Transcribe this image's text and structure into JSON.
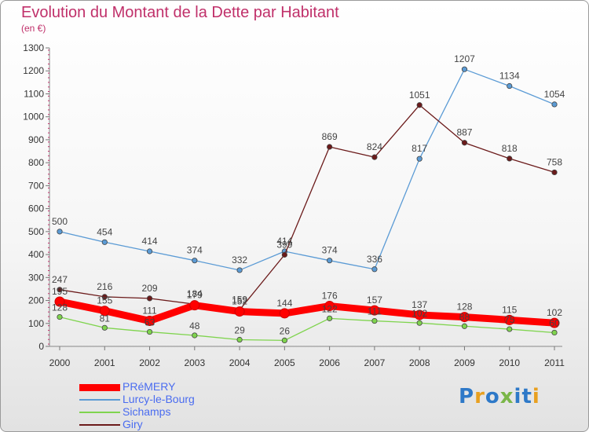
{
  "chart_data": {
    "type": "line",
    "title": "Evolution du Montant de la Dette par Habitant",
    "subtitle": "(en €)",
    "xlabel": "",
    "ylabel": "",
    "categories": [
      "2000",
      "2001",
      "2002",
      "2003",
      "2004",
      "2005",
      "2006",
      "2007",
      "2008",
      "2009",
      "2010",
      "2011"
    ],
    "ylim": [
      0,
      1300
    ],
    "yticks": [
      0,
      100,
      200,
      300,
      400,
      500,
      600,
      700,
      800,
      900,
      1000,
      1100,
      1200,
      1300
    ],
    "grid": false,
    "legend_position": "bottom-left",
    "series": [
      {
        "name": "Lurcy-le-Bourg",
        "color": "#5b9bd5",
        "values": [
          500,
          454,
          414,
          374,
          332,
          414,
          374,
          336,
          817,
          1207,
          1134,
          1054
        ]
      },
      {
        "name": "Giry",
        "color": "#6b1a1a",
        "values": [
          247,
          216,
          209,
          184,
          159,
          399,
          869,
          824,
          1051,
          887,
          818,
          758
        ]
      },
      {
        "name": "Sichamps",
        "color": "#7fd44e",
        "values": [
          128,
          81,
          63,
          48,
          29,
          26,
          122,
          111,
          102,
          88,
          75,
          60
        ]
      },
      {
        "name": "PRéMERY",
        "color": "#ff0000",
        "values": [
          195,
          155,
          111,
          179,
          152,
          144,
          176,
          157,
          137,
          128,
          115,
          102
        ]
      }
    ]
  },
  "legend": {
    "items": [
      {
        "label": "PRéMERY",
        "color": "#ff0000",
        "thickness": 9
      },
      {
        "label": "Lurcy-le-Bourg",
        "color": "#5b9bd5",
        "thickness": 2
      },
      {
        "label": "Sichamps",
        "color": "#7fd44e",
        "thickness": 2
      },
      {
        "label": "Giry",
        "color": "#6b1a1a",
        "thickness": 2
      }
    ]
  },
  "logo": {
    "text": "Proxiti",
    "colors": [
      "#2e79c8",
      "#e8a020",
      "#2e79c8",
      "#7ab648",
      "#2e79c8",
      "#2e79c8",
      "#e8a020"
    ]
  }
}
